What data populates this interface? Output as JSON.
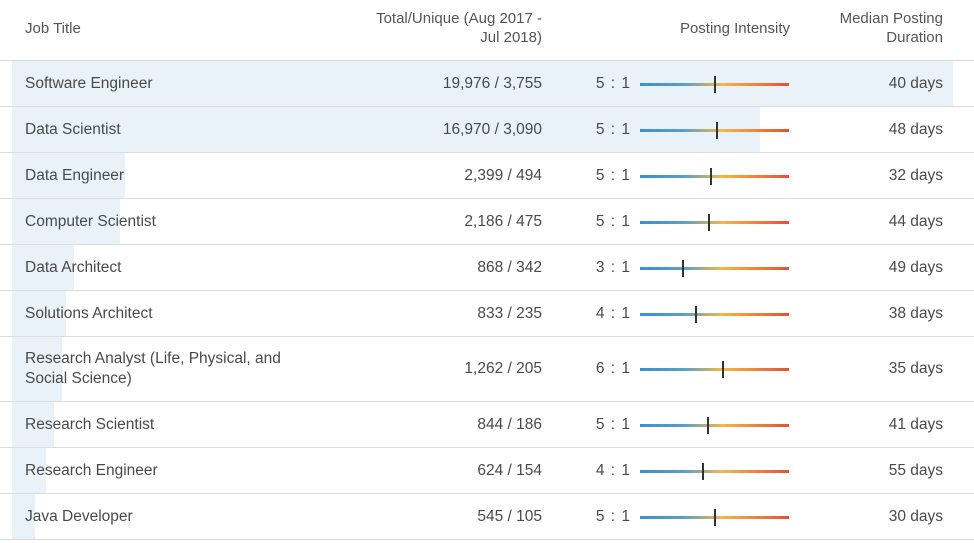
{
  "header": {
    "job_title": "Job Title",
    "total_unique_line1": "Total/Unique (Aug 2017 -",
    "total_unique_line2": "Jul 2018)",
    "posting_intensity": "Posting Intensity",
    "median_duration_line1": "Median Posting",
    "median_duration_line2": "Duration"
  },
  "colors": {
    "row_shade": "#e9f1f9",
    "gradient_start": "#3d8fd1",
    "gradient_mid": "#f2b74a",
    "gradient_end": "#e5503a",
    "marker": "#333333"
  },
  "rows": [
    {
      "title": "Software Engineer",
      "total_unique": "19,976 / 3,755",
      "ratio": "5 : 1",
      "intensity_ratio": 5,
      "duration": "40 days"
    },
    {
      "title": "Data Scientist",
      "total_unique": "16,970 / 3,090",
      "ratio": "5 : 1",
      "intensity_ratio": 5,
      "duration": "48 days"
    },
    {
      "title": "Data Engineer",
      "total_unique": "2,399 / 494",
      "ratio": "5 : 1",
      "intensity_ratio": 5,
      "duration": "32 days"
    },
    {
      "title": "Computer Scientist",
      "total_unique": "2,186 / 475",
      "ratio": "5 : 1",
      "intensity_ratio": 5,
      "duration": "44 days"
    },
    {
      "title": "Data Architect",
      "total_unique": "868 / 342",
      "ratio": "3 : 1",
      "intensity_ratio": 3,
      "duration": "49 days"
    },
    {
      "title": "Solutions Architect",
      "total_unique": "833 / 235",
      "ratio": "4 : 1",
      "intensity_ratio": 4,
      "duration": "38 days"
    },
    {
      "title": "Research Analyst (Life, Physical, and Social Science)",
      "total_unique": "1,262 / 205",
      "ratio": "6 : 1",
      "intensity_ratio": 6,
      "duration": "35 days"
    },
    {
      "title": "Research Scientist",
      "total_unique": "844 / 186",
      "ratio": "5 : 1",
      "intensity_ratio": 5,
      "duration": "41 days"
    },
    {
      "title": "Research Engineer",
      "total_unique": "624 / 154",
      "ratio": "4 : 1",
      "intensity_ratio": 4,
      "duration": "55 days"
    },
    {
      "title": "Java Developer",
      "total_unique": "545 / 105",
      "ratio": "5 : 1",
      "intensity_ratio": 5,
      "duration": "30 days"
    }
  ]
}
